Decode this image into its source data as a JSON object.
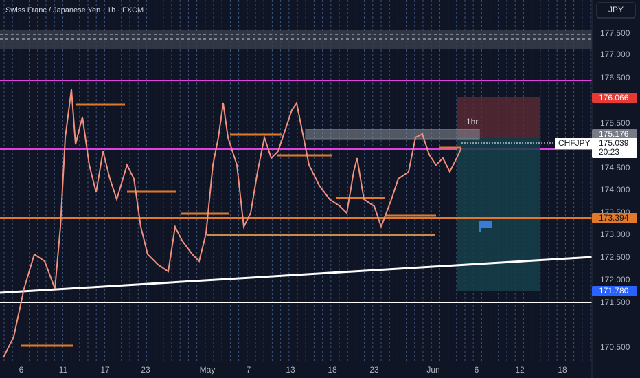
{
  "header": {
    "title": "Swiss Franc / Japanese Yen · 1h · FXCM",
    "currency": "JPY"
  },
  "price_axis": {
    "labels": [
      "177.500",
      "177.000",
      "176.500",
      "175.500",
      "174.500",
      "174.000",
      "173.500",
      "173.000",
      "172.500",
      "172.000",
      "171.500",
      "170.500"
    ]
  },
  "date_axis": {
    "labels": [
      "6",
      "11",
      "17",
      "23",
      "May",
      "7",
      "13",
      "18",
      "23",
      "Jun",
      "6",
      "12",
      "18"
    ]
  },
  "badges": {
    "stop": "176.066",
    "zone": "175.176",
    "symbol": "CHFJPY",
    "price": "175.039",
    "countdown": "20:23",
    "level": "173.394",
    "target": "171.780"
  },
  "drawing_label": "1hr"
}
